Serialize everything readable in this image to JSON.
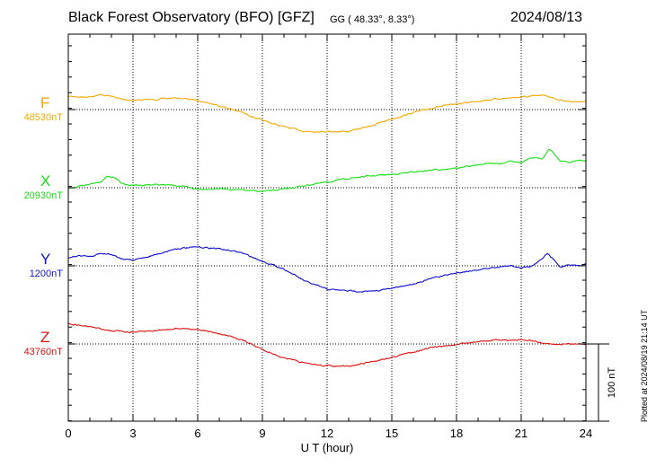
{
  "header": {
    "title": "Black Forest Observatory (BFO)  [GFZ]",
    "coords": "GG ( 48.33°,   8.33°)",
    "date": "2024/08/13",
    "plotted": "Plotted at 2024/08/19 21:14 UT"
  },
  "chart_data": {
    "type": "line",
    "title": "Black Forest Observatory (BFO)  [GFZ]",
    "xlabel": "U T (hour)",
    "xlim": [
      0,
      24
    ],
    "xticks": [
      "0",
      "3",
      "6",
      "9",
      "12",
      "15",
      "18",
      "21",
      "24"
    ],
    "scale_label": "100 nT",
    "units": "nT",
    "series": [
      {
        "name": "F",
        "baseline_label": "48530nT",
        "color": "#f5a800",
        "baseline": 48530,
        "x": [
          0,
          0.8,
          1.5,
          2,
          2.5,
          3,
          4,
          5,
          6,
          7,
          8,
          9,
          10,
          11,
          12,
          13,
          14,
          15,
          16,
          17,
          18,
          19,
          20,
          21,
          22,
          22.4,
          22.8,
          23.5,
          24
        ],
        "y": [
          48547,
          48546,
          48549,
          48547,
          48543,
          48542,
          48543,
          48545,
          48542,
          48535,
          48527,
          48516,
          48508,
          48502,
          48502,
          48502,
          48509,
          48518,
          48526,
          48533,
          48537,
          48541,
          48544,
          48546,
          48548,
          48546,
          48542,
          48540,
          48541
        ]
      },
      {
        "name": "X",
        "baseline_label": "20930nT",
        "color": "#18e018",
        "baseline": 20930,
        "x": [
          0,
          0.5,
          1,
          1.5,
          1.8,
          2.2,
          2.6,
          3,
          4,
          5,
          6,
          7,
          8,
          9,
          10,
          11,
          12,
          13,
          14,
          15,
          16,
          17,
          18,
          19,
          19.6,
          20,
          20.5,
          21,
          21.5,
          22,
          22.3,
          22.8,
          23.2,
          23.6,
          24
        ],
        "y": [
          20929,
          20932,
          20934,
          20938,
          20944,
          20942,
          20934,
          20933,
          20934,
          20933,
          20928,
          20929,
          20927,
          20925,
          20928,
          20933,
          20937,
          20942,
          20945,
          20947,
          20950,
          20953,
          20955,
          20959,
          20962,
          20960,
          20965,
          20962,
          20968,
          20968,
          20980,
          20965,
          20962,
          20965,
          20964
        ]
      },
      {
        "name": "Y",
        "baseline_label": "1200nT",
        "color": "#1010d0",
        "baseline": 1200,
        "x": [
          0,
          0.5,
          1,
          1.5,
          2,
          2.5,
          3,
          4,
          5,
          6,
          7,
          8,
          9,
          10,
          11,
          12,
          13,
          14,
          15,
          16,
          17,
          18,
          19,
          20,
          20.5,
          21,
          21.5,
          22,
          22.2,
          22.5,
          22.8,
          23.2,
          23.6,
          24
        ],
        "y": [
          1210,
          1213,
          1212,
          1216,
          1215,
          1209,
          1207,
          1214,
          1222,
          1224,
          1222,
          1217,
          1206,
          1196,
          1180,
          1170,
          1168,
          1167,
          1171,
          1177,
          1185,
          1191,
          1195,
          1199,
          1200,
          1198,
          1200,
          1210,
          1216,
          1208,
          1198,
          1202,
          1200,
          1203
        ]
      },
      {
        "name": "Z",
        "baseline_label": "43760nT",
        "color": "#e01010",
        "baseline": 43760,
        "x": [
          0,
          1,
          2,
          3,
          4,
          5,
          6,
          7,
          8,
          9,
          10,
          11,
          12,
          13,
          14,
          15,
          16,
          17,
          18,
          19,
          20,
          21,
          21.5,
          22,
          22.5,
          23,
          24
        ],
        "y": [
          43786,
          43782,
          43777,
          43775,
          43777,
          43780,
          43779,
          43773,
          43766,
          43753,
          43742,
          43735,
          43732,
          43731,
          43737,
          43743,
          43750,
          43756,
          43759,
          43763,
          43765,
          43765,
          43764,
          43761,
          43759,
          43760,
          43760
        ]
      }
    ]
  }
}
